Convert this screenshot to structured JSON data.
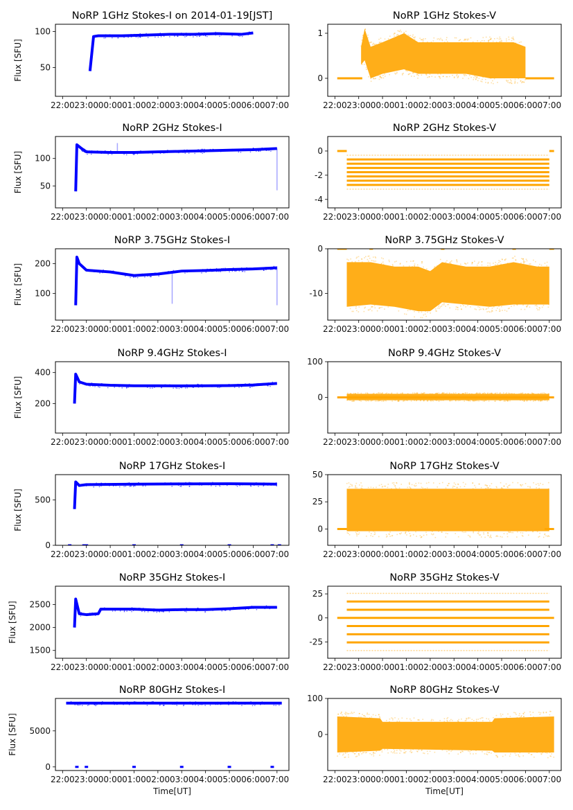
{
  "figure": {
    "xtick_labels": [
      "22:00",
      "23:00",
      "00:00",
      "01:00",
      "02:00",
      "03:00",
      "04:00",
      "05:00",
      "06:00",
      "07:00"
    ],
    "xlabel": "Time[UT]",
    "ylabel": "Flux [SFU]",
    "colors": {
      "stokes_i": "#0000ff",
      "stokes_v": "#ffa500"
    }
  },
  "chart_data": [
    {
      "type": "scatter",
      "title": "NoRP 1GHz Stokes-I on 2014-01-19[JST]",
      "ylabel": "Flux [SFU]",
      "xlabel": "",
      "ylim": [
        10,
        110
      ],
      "yticks": [
        50,
        100
      ],
      "xlim_hours": [
        21.7,
        31.5
      ],
      "segments": [
        {
          "x": [
            23.15,
            23.3,
            23.5,
            24.5,
            25.5,
            26.5,
            27.5,
            28.5,
            29.5,
            30.0
          ],
          "y": [
            45,
            93,
            94,
            94,
            95,
            96,
            96,
            97,
            96,
            98
          ]
        }
      ],
      "color": "stokes_i"
    },
    {
      "type": "scatter",
      "title": "NoRP 1GHz Stokes-V",
      "ylabel": "",
      "xlabel": "",
      "ylim": [
        -0.4,
        1.2
      ],
      "yticks": [
        0,
        1
      ],
      "xlim_hours": [
        21.7,
        31.5
      ],
      "baseline": {
        "y": 0,
        "ranges": [
          [
            22.1,
            23.15
          ],
          [
            30.0,
            31.2
          ]
        ]
      },
      "band": {
        "x": [
          23.1,
          23.25,
          23.5,
          24.0,
          24.9,
          25.5,
          26.5,
          27.5,
          28.5,
          29.5,
          30.0
        ],
        "low": [
          0.3,
          0.4,
          0.0,
          0.1,
          0.2,
          0.1,
          0.1,
          0.1,
          0.0,
          0.0,
          0.0
        ],
        "high": [
          0.7,
          1.1,
          0.7,
          0.8,
          1.0,
          0.8,
          0.8,
          0.8,
          0.8,
          0.8,
          0.7
        ]
      },
      "color": "stokes_v"
    },
    {
      "type": "scatter",
      "title": "NoRP 2GHz Stokes-I",
      "ylabel": "Flux [SFU]",
      "xlabel": "",
      "ylim": [
        10,
        140
      ],
      "yticks": [
        50,
        100
      ],
      "xlim_hours": [
        21.7,
        31.5
      ],
      "segments": [
        {
          "x": [
            22.55,
            22.6,
            22.8,
            23.0,
            24.0,
            25.0,
            26.0,
            27.0,
            28.0,
            29.0,
            30.0,
            31.0
          ],
          "y": [
            40,
            125,
            118,
            112,
            111,
            111,
            112,
            113,
            114,
            115,
            116,
            118
          ]
        }
      ],
      "spikes": [
        {
          "x": 24.3,
          "y": 128
        },
        {
          "x": 31.0,
          "y": 42
        }
      ],
      "color": "stokes_i"
    },
    {
      "type": "scatter",
      "title": "NoRP 2GHz Stokes-V",
      "ylabel": "",
      "xlabel": "",
      "ylim": [
        -4.7,
        1.2
      ],
      "yticks": [
        -4,
        -2,
        0
      ],
      "xlim_hours": [
        21.7,
        31.5
      ],
      "baseline": {
        "y": 0,
        "ranges": [
          [
            22.1,
            22.5
          ],
          [
            31.0,
            31.2
          ]
        ]
      },
      "levels": [
        -0.35,
        -0.7,
        -1.05,
        -1.4,
        -1.75,
        -2.1,
        -2.45,
        -2.8,
        -3.15
      ],
      "level_x": [
        22.5,
        31.0
      ],
      "color": "stokes_v"
    },
    {
      "type": "scatter",
      "title": "NoRP 3.75GHz Stokes-I",
      "ylabel": "Flux [SFU]",
      "xlabel": "",
      "ylim": [
        10,
        250
      ],
      "yticks": [
        100,
        200
      ],
      "xlim_hours": [
        21.7,
        31.5
      ],
      "segments": [
        {
          "x": [
            22.55,
            22.6,
            22.7,
            23.0,
            24.0,
            25.0,
            26.0,
            26.5,
            27.0,
            28.0,
            29.0,
            30.0,
            31.0
          ],
          "y": [
            60,
            222,
            200,
            178,
            172,
            160,
            165,
            170,
            175,
            177,
            180,
            182,
            186
          ]
        }
      ],
      "spikes": [
        {
          "x": 26.6,
          "y": 65
        },
        {
          "x": 31.0,
          "y": 60
        }
      ],
      "color": "stokes_i"
    },
    {
      "type": "scatter",
      "title": "NoRP 3.75GHz Stokes-V",
      "ylabel": "",
      "xlabel": "",
      "ylim": [
        -16,
        0
      ],
      "yticks": [
        -10,
        0
      ],
      "xlim_hours": [
        21.7,
        31.5
      ],
      "baseline": {
        "y": 0,
        "ranges": [
          [
            22.1,
            22.5
          ],
          [
            23.45,
            23.6
          ],
          [
            26.45,
            26.6
          ],
          [
            29.45,
            29.6
          ],
          [
            31.0,
            31.2
          ]
        ]
      },
      "band": {
        "x": [
          22.5,
          23.5,
          24.5,
          25.5,
          26.0,
          26.5,
          27.5,
          28.5,
          29.5,
          30.5,
          31.0
        ],
        "low": [
          -13,
          -12.5,
          -13,
          -14,
          -14,
          -12,
          -12.5,
          -13,
          -12.5,
          -12.5,
          -12.5
        ],
        "high": [
          -3,
          -3,
          -4,
          -4,
          -5,
          -3,
          -4,
          -4,
          -3,
          -4,
          -4
        ]
      },
      "color": "stokes_v"
    },
    {
      "type": "scatter",
      "title": "NoRP 9.4GHz Stokes-I",
      "ylabel": "Flux [SFU]",
      "xlabel": "",
      "ylim": [
        10,
        470
      ],
      "yticks": [
        200,
        400
      ],
      "xlim_hours": [
        21.7,
        31.5
      ],
      "segments": [
        {
          "x": [
            22.5,
            22.55,
            22.7,
            23.0,
            24.0,
            25.0,
            26.0,
            27.0,
            28.0,
            29.0,
            30.0,
            31.0
          ],
          "y": [
            200,
            390,
            340,
            325,
            318,
            315,
            315,
            314,
            315,
            316,
            320,
            330
          ]
        }
      ],
      "color": "stokes_i"
    },
    {
      "type": "scatter",
      "title": "NoRP 9.4GHz Stokes-V",
      "ylabel": "",
      "xlabel": "",
      "ylim": [
        -100,
        100
      ],
      "yticks": [
        0,
        100
      ],
      "xlim_hours": [
        21.7,
        31.5
      ],
      "baseline": {
        "y": 0,
        "ranges": [
          [
            22.1,
            31.2
          ]
        ]
      },
      "band": {
        "x": [
          22.5,
          31.0
        ],
        "low": [
          -8,
          -8
        ],
        "high": [
          10,
          10
        ]
      },
      "color": "stokes_v"
    },
    {
      "type": "scatter",
      "title": "NoRP 17GHz Stokes-I",
      "ylabel": "Flux [SFU]",
      "xlabel": "",
      "ylim": [
        0,
        780
      ],
      "yticks": [
        0,
        500
      ],
      "xlim_hours": [
        21.7,
        31.5
      ],
      "segments": [
        {
          "x": [
            22.5,
            22.55,
            22.7,
            23.0,
            25.0,
            27.0,
            29.0,
            31.0
          ],
          "y": [
            400,
            700,
            660,
            670,
            675,
            678,
            680,
            675
          ]
        }
      ],
      "zero_marks": [
        22.3,
        22.9,
        23.0,
        25.0,
        27.0,
        29.0,
        30.8,
        31.1
      ],
      "color": "stokes_i"
    },
    {
      "type": "scatter",
      "title": "NoRP 17GHz Stokes-V",
      "ylabel": "",
      "xlabel": "",
      "ylim": [
        -15,
        50
      ],
      "yticks": [
        0,
        25,
        50
      ],
      "xlim_hours": [
        21.7,
        31.5
      ],
      "baseline": {
        "y": 0,
        "ranges": [
          [
            22.1,
            22.5
          ],
          [
            30.8,
            31.2
          ]
        ]
      },
      "band": {
        "x": [
          22.5,
          31.0
        ],
        "low": [
          -2,
          -2
        ],
        "high": [
          37,
          37
        ]
      },
      "color": "stokes_v"
    },
    {
      "type": "scatter",
      "title": "NoRP 35GHz Stokes-I",
      "ylabel": "Flux [SFU]",
      "xlabel": "",
      "ylim": [
        1330,
        2900
      ],
      "yticks": [
        1500,
        2000,
        2500
      ],
      "xlim_hours": [
        21.7,
        31.5
      ],
      "segments": [
        {
          "x": [
            22.5,
            22.55,
            22.7,
            23.0,
            23.5,
            23.6,
            24.0,
            25.0,
            26.0,
            27.0,
            28.0,
            29.0,
            30.0,
            31.0
          ],
          "y": [
            2000,
            2620,
            2300,
            2280,
            2300,
            2400,
            2400,
            2400,
            2380,
            2390,
            2390,
            2410,
            2440,
            2440
          ]
        }
      ],
      "color": "stokes_i"
    },
    {
      "type": "scatter",
      "title": "NoRP 35GHz Stokes-V",
      "ylabel": "",
      "xlabel": "",
      "ylim": [
        -42,
        33
      ],
      "yticks": [
        -25,
        0,
        25
      ],
      "xlim_hours": [
        21.7,
        31.5
      ],
      "baseline": {
        "y": 0,
        "ranges": [
          [
            22.1,
            31.2
          ]
        ]
      },
      "levels": [
        25.5,
        17,
        8.5,
        -8.5,
        -17,
        -25.5,
        -34
      ],
      "level_x": [
        22.5,
        31.0
      ],
      "color": "stokes_v"
    },
    {
      "type": "scatter",
      "title": "NoRP 80GHz Stokes-I",
      "ylabel": "Flux [SFU]",
      "xlabel": "Time[UT]",
      "ylim": [
        -500,
        9500
      ],
      "yticks": [
        0,
        5000
      ],
      "xlim_hours": [
        21.7,
        31.5
      ],
      "segments": [
        {
          "x": [
            22.15,
            31.2
          ],
          "y": [
            8850,
            8850
          ]
        }
      ],
      "zero_marks": [
        22.6,
        23.0,
        25.0,
        27.0,
        29.0,
        30.8
      ],
      "color": "stokes_i"
    },
    {
      "type": "scatter",
      "title": "NoRP 80GHz Stokes-V",
      "ylabel": "",
      "xlabel": "Time[UT]",
      "ylim": [
        -100,
        100
      ],
      "yticks": [
        0,
        100
      ],
      "xlim_hours": [
        21.7,
        31.5
      ],
      "band": {
        "x": [
          22.1,
          23.9,
          24.0,
          28.6,
          28.7,
          31.2
        ],
        "low": [
          -50,
          -45,
          -40,
          -45,
          -50,
          -50
        ],
        "high": [
          50,
          45,
          35,
          35,
          45,
          50
        ]
      },
      "color": "stokes_v"
    }
  ]
}
